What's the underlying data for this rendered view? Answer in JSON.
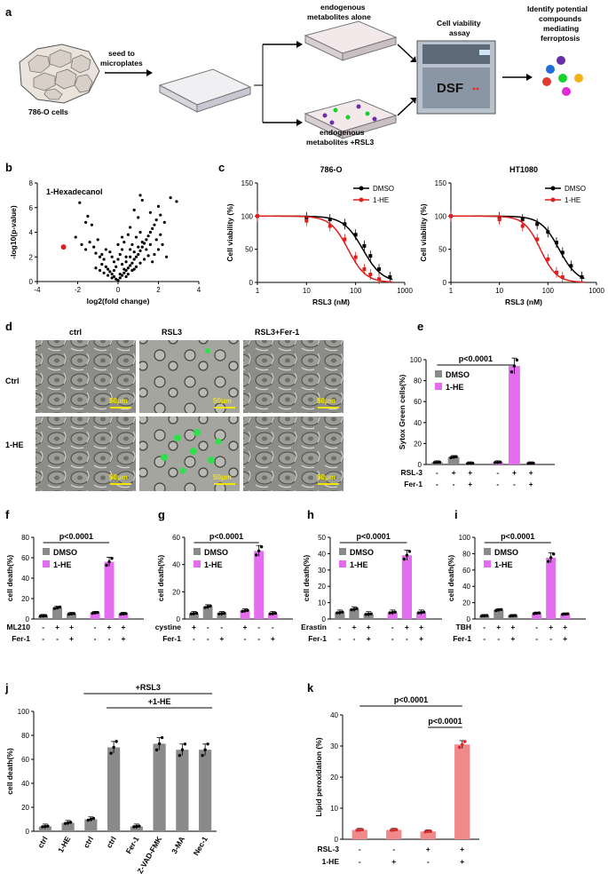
{
  "panels": {
    "a": "a",
    "b": "b",
    "c": "c",
    "d": "d",
    "e": "e",
    "f": "f",
    "g": "g",
    "h": "h",
    "i": "i",
    "j": "j",
    "k": "k"
  },
  "schematic": {
    "cells_label": "786-O cells",
    "seed_label_1": "seed to",
    "seed_label_2": "microplates",
    "alone_label_1": "endogenous",
    "alone_label_2": "metabolites alone",
    "rsl3_label_1": "endogenous",
    "rsl3_label_2": "metabolites +RSL3",
    "assay_label_1": "Cell viability",
    "assay_label_2": "assay",
    "machine_label": "DSF",
    "result_label_1": "Identify potential",
    "result_label_2": "compounds",
    "result_label_3": "mediating",
    "result_label_4": "ferroptosis",
    "dot_colors": [
      "#6a2fa8",
      "#1f6fd6",
      "#e03b2f",
      "#18d12a",
      "#f2b21c",
      "#e22ad6"
    ]
  },
  "microscopy": {
    "col_ctrl": "ctrl",
    "col_rsl3": "RSL3",
    "col_rsl3fer": "RSL3+Fer-1",
    "row_ctrl": "Ctrl",
    "row_1he": "1-HE",
    "scale": "50μm"
  },
  "chart_data": [
    {
      "id": "b",
      "type": "scatter",
      "title": "1-Hexadecanol",
      "xlabel": "log2(fold change)",
      "ylabel": "-log10(p-value)",
      "xlim": [
        -4,
        4
      ],
      "ylim": [
        0,
        8
      ],
      "xticks": [
        "-4",
        "-2",
        "0",
        "2",
        "4"
      ],
      "yticks": [
        "0",
        "2",
        "4",
        "6",
        "8"
      ],
      "highlight": {
        "x": -2.7,
        "y": 2.8,
        "color": "#e01e1e"
      },
      "points": [
        [
          -1.9,
          6.4
        ],
        [
          -1.5,
          5.3
        ],
        [
          -1.6,
          4.8
        ],
        [
          -1.3,
          4.6
        ],
        [
          -2.1,
          3.6
        ],
        [
          -1.8,
          3.0
        ],
        [
          -1.4,
          3.2
        ],
        [
          -1.6,
          2.6
        ],
        [
          -1.2,
          2.8
        ],
        [
          -1.0,
          3.4
        ],
        [
          -1.1,
          2.3
        ],
        [
          -0.9,
          2.0
        ],
        [
          -0.7,
          1.8
        ],
        [
          -0.8,
          1.4
        ],
        [
          -0.6,
          1.2
        ],
        [
          -0.5,
          1.0
        ],
        [
          -0.4,
          0.8
        ],
        [
          -0.3,
          0.6
        ],
        [
          -0.2,
          0.4
        ],
        [
          -0.1,
          0.2
        ],
        [
          0.0,
          0.1
        ],
        [
          0.1,
          0.3
        ],
        [
          0.2,
          0.5
        ],
        [
          0.3,
          0.7
        ],
        [
          0.4,
          0.9
        ],
        [
          0.5,
          1.1
        ],
        [
          0.6,
          1.3
        ],
        [
          0.7,
          1.5
        ],
        [
          0.8,
          1.8
        ],
        [
          0.9,
          2.0
        ],
        [
          1.0,
          2.2
        ],
        [
          1.1,
          2.5
        ],
        [
          1.2,
          2.8
        ],
        [
          1.3,
          3.1
        ],
        [
          1.4,
          3.4
        ],
        [
          1.5,
          3.7
        ],
        [
          1.6,
          4.0
        ],
        [
          1.7,
          4.3
        ],
        [
          1.8,
          4.6
        ],
        [
          1.9,
          5.0
        ],
        [
          2.1,
          5.4
        ],
        [
          2.3,
          4.8
        ],
        [
          2.0,
          6.1
        ],
        [
          1.2,
          6.6
        ],
        [
          0.8,
          5.8
        ],
        [
          1.0,
          5.2
        ],
        [
          0.6,
          4.4
        ],
        [
          0.5,
          3.8
        ],
        [
          0.3,
          3.2
        ],
        [
          0.2,
          2.6
        ],
        [
          0.1,
          2.2
        ],
        [
          0.0,
          1.8
        ],
        [
          -0.2,
          1.6
        ],
        [
          -0.3,
          2.0
        ],
        [
          -0.1,
          1.2
        ],
        [
          0.2,
          1.4
        ],
        [
          0.4,
          1.6
        ],
        [
          0.6,
          2.0
        ],
        [
          0.8,
          2.4
        ],
        [
          1.0,
          2.8
        ],
        [
          1.2,
          3.2
        ],
        [
          1.4,
          2.6
        ],
        [
          1.6,
          3.0
        ],
        [
          1.8,
          2.2
        ],
        [
          2.0,
          2.6
        ],
        [
          2.2,
          3.0
        ],
        [
          2.4,
          2.0
        ],
        [
          0.7,
          3.0
        ],
        [
          0.9,
          3.6
        ],
        [
          1.1,
          4.0
        ],
        [
          0.3,
          1.0
        ],
        [
          0.5,
          0.6
        ],
        [
          0.7,
          0.9
        ],
        [
          -0.5,
          0.5
        ],
        [
          -0.7,
          0.7
        ],
        [
          -0.9,
          0.9
        ],
        [
          -1.1,
          1.1
        ],
        [
          -0.3,
          0.3
        ],
        [
          0.1,
          0.6
        ],
        [
          0.4,
          0.4
        ],
        [
          2.6,
          6.8
        ],
        [
          2.9,
          6.5
        ],
        [
          1.1,
          7.0
        ],
        [
          1.6,
          5.6
        ],
        [
          -0.4,
          2.4
        ],
        [
          -0.6,
          2.6
        ],
        [
          0.0,
          3.0
        ],
        [
          0.2,
          3.6
        ],
        [
          1.3,
          1.8
        ],
        [
          1.5,
          2.1
        ],
        [
          1.7,
          1.6
        ],
        [
          0.9,
          1.2
        ],
        [
          1.1,
          1.5
        ],
        [
          -0.2,
          0.9
        ],
        [
          -0.8,
          2.2
        ],
        [
          0.6,
          2.6
        ],
        [
          1.9,
          3.4
        ],
        [
          2.1,
          3.8
        ],
        [
          0.4,
          2.0
        ],
        [
          0.8,
          1.0
        ]
      ]
    },
    {
      "id": "c1",
      "type": "line",
      "title": "786-O",
      "xlabel": "RSL3 (nM)",
      "ylabel": "Cell viability (%)",
      "xscale": "log",
      "xlim": [
        1,
        1000
      ],
      "ylim": [
        0,
        150
      ],
      "xticks": [
        "1",
        "10",
        "100",
        "1000"
      ],
      "yticks": [
        "0",
        "50",
        "100",
        "150"
      ],
      "series": [
        {
          "name": "DMSO",
          "color": "#000000",
          "ic50": 140,
          "hill": 2.2,
          "x": [
            1,
            10,
            30,
            60,
            100,
            150,
            200,
            300,
            500
          ],
          "y": [
            100,
            98,
            95,
            88,
            72,
            55,
            40,
            20,
            8
          ]
        },
        {
          "name": "1-HE",
          "color": "#e01e1e",
          "ic50": 70,
          "hill": 2.4,
          "x": [
            1,
            10,
            30,
            60,
            100,
            150,
            200,
            300
          ],
          "y": [
            100,
            93,
            85,
            65,
            38,
            20,
            12,
            5
          ]
        }
      ]
    },
    {
      "id": "c2",
      "type": "line",
      "title": "HT1080",
      "xlabel": "RSL3 (nM)",
      "ylabel": "Cell viability (%)",
      "xscale": "log",
      "xlim": [
        1,
        1000
      ],
      "ylim": [
        0,
        150
      ],
      "xticks": [
        "1",
        "10",
        "100",
        "1000"
      ],
      "yticks": [
        "0",
        "50",
        "100",
        "150"
      ],
      "series": [
        {
          "name": "DMSO",
          "color": "#000000",
          "ic50": 170,
          "hill": 2.3,
          "x": [
            1,
            10,
            30,
            60,
            100,
            150,
            200,
            300,
            500
          ],
          "y": [
            100,
            98,
            95,
            88,
            76,
            60,
            45,
            25,
            8
          ]
        },
        {
          "name": "1-HE",
          "color": "#e01e1e",
          "ic50": 70,
          "hill": 2.6,
          "x": [
            1,
            10,
            30,
            60,
            100,
            150,
            200
          ],
          "y": [
            100,
            95,
            85,
            65,
            35,
            15,
            8
          ]
        }
      ]
    },
    {
      "id": "e",
      "type": "bar",
      "ylabel": "Sytox Green cells(%)",
      "ylim": [
        0,
        100
      ],
      "yticks": [
        "0",
        "20",
        "40",
        "60",
        "80",
        "100"
      ],
      "pvalue": "p<0.0001",
      "legend": [
        "DMSO",
        "1-HE"
      ],
      "row1_label": "RSL-3",
      "row2_label": "Fer-1",
      "row1": [
        "-",
        "+",
        "+",
        "-",
        "+",
        "+"
      ],
      "row2": [
        "-",
        "-",
        "+",
        "-",
        "-",
        "+"
      ],
      "series": [
        {
          "name": "DMSO",
          "color": "#8a8a8a",
          "values": [
            2,
            7,
            1
          ]
        },
        {
          "name": "1-HE",
          "color": "#e46cf0",
          "values": [
            2,
            94,
            1
          ]
        }
      ]
    },
    {
      "id": "f",
      "type": "bar",
      "ylabel": "cell death(%)",
      "ylim": [
        0,
        80
      ],
      "yticks": [
        "0",
        "20",
        "40",
        "60",
        "80"
      ],
      "pvalue": "p<0.0001",
      "legend": [
        "DMSO",
        "1-HE"
      ],
      "row1_label": "ML210",
      "row2_label": "Fer-1",
      "row1": [
        "-",
        "+",
        "+",
        "-",
        "+",
        "+"
      ],
      "row2": [
        "-",
        "-",
        "+",
        "-",
        "-",
        "+"
      ],
      "series": [
        {
          "name": "DMSO",
          "color": "#8a8a8a",
          "values": [
            3,
            11,
            5
          ]
        },
        {
          "name": "1-HE",
          "color": "#e46cf0",
          "values": [
            6,
            56,
            5
          ]
        }
      ]
    },
    {
      "id": "g",
      "type": "bar",
      "ylabel": "cell death(%)",
      "ylim": [
        0,
        60
      ],
      "yticks": [
        "0",
        "20",
        "40",
        "60"
      ],
      "pvalue": "p<0.0001",
      "legend": [
        "DMSO",
        "1-HE"
      ],
      "row1_label": "cystine",
      "row2_label": "Fer-1",
      "row1": [
        "+",
        "-",
        "-",
        "+",
        "-",
        "-"
      ],
      "row2": [
        "-",
        "-",
        "+",
        "-",
        "-",
        "+"
      ],
      "series": [
        {
          "name": "DMSO",
          "color": "#8a8a8a",
          "values": [
            4,
            9,
            4
          ]
        },
        {
          "name": "1-HE",
          "color": "#e46cf0",
          "values": [
            6,
            50,
            4
          ]
        }
      ]
    },
    {
      "id": "h",
      "type": "bar",
      "ylabel": "cell death(%)",
      "ylim": [
        0,
        50
      ],
      "yticks": [
        "0",
        "10",
        "20",
        "30",
        "40",
        "50"
      ],
      "pvalue": "p<0.0001",
      "legend": [
        "DMSO",
        "1-HE"
      ],
      "row1_label": "Erastin",
      "row2_label": "Fer-1",
      "row1": [
        "-",
        "+",
        "+",
        "-",
        "+",
        "+"
      ],
      "row2": [
        "-",
        "-",
        "+",
        "-",
        "-",
        "+"
      ],
      "series": [
        {
          "name": "DMSO",
          "color": "#8a8a8a",
          "values": [
            4,
            6,
            3
          ]
        },
        {
          "name": "1-HE",
          "color": "#e46cf0",
          "values": [
            4,
            39,
            4
          ]
        }
      ]
    },
    {
      "id": "i",
      "type": "bar",
      "ylabel": "cell death(%)",
      "ylim": [
        0,
        100
      ],
      "yticks": [
        "0",
        "20",
        "40",
        "60",
        "80",
        "100"
      ],
      "pvalue": "p<0.0001",
      "legend": [
        "DMSO",
        "1-HE"
      ],
      "row1_label": "TBH",
      "row2_label": "Fer-1",
      "row1": [
        "-",
        "+",
        "+",
        "-",
        "+",
        "+"
      ],
      "row2": [
        "-",
        "-",
        "+",
        "-",
        "-",
        "+"
      ],
      "series": [
        {
          "name": "DMSO",
          "color": "#8a8a8a",
          "values": [
            4,
            11,
            4
          ]
        },
        {
          "name": "1-HE",
          "color": "#e46cf0",
          "values": [
            7,
            75,
            6
          ]
        }
      ]
    },
    {
      "id": "j",
      "type": "bar",
      "ylabel": "cell death(%)",
      "ylim": [
        0,
        100
      ],
      "yticks": [
        "0",
        "20",
        "40",
        "60",
        "80",
        "100"
      ],
      "bracket1": "+RSL3",
      "bracket2": "+1-HE",
      "color": "#8a8a8a",
      "categories": [
        "ctrl",
        "1-HE",
        "ctrl",
        "ctrl",
        "Fer-1",
        "Z-VAD-FMK",
        "3-MA",
        "Nec-1"
      ],
      "values": [
        4,
        7,
        10,
        70,
        4,
        73,
        68,
        68
      ]
    },
    {
      "id": "k",
      "type": "bar",
      "ylabel": "Lipid peroxidation (%)",
      "ylim": [
        0,
        40
      ],
      "yticks": [
        "0",
        "10",
        "20",
        "30",
        "40"
      ],
      "pvalue1": "p<0.0001",
      "pvalue2": "p<0.0001",
      "color": "#f08a8a",
      "row1_label": "RSL-3",
      "row2_label": "1-HE",
      "row1": [
        "-",
        "-",
        "+",
        "+"
      ],
      "row2": [
        "-",
        "+",
        "-",
        "+"
      ],
      "values": [
        3,
        3,
        2.5,
        30.5
      ]
    }
  ]
}
